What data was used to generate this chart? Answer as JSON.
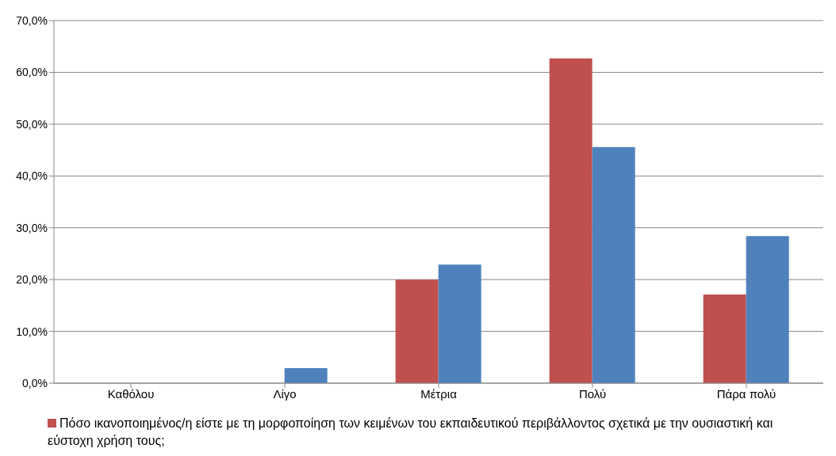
{
  "chart_data": {
    "type": "bar",
    "categories": [
      "Καθόλου",
      "Λίγο",
      "Μέτρια",
      "Πολύ",
      "Πάρα πολύ"
    ],
    "series": [
      {
        "name": "Πόσο ικανοποιημένος/η είστε με τη μορφοποίηση των κειμένων του εκπαιδευτικού περιβάλλοντος σχετικά με την ουσιαστική και εύστοχη χρήση τους;",
        "color": "#c0504d",
        "values": [
          0,
          0,
          20.0,
          62.7,
          17.1
        ]
      },
      {
        "color": "#4f81bd",
        "values": [
          0,
          2.9,
          22.9,
          45.6,
          28.4
        ]
      }
    ],
    "ylim": [
      0,
      70
    ],
    "yticks": [
      {
        "value": 0,
        "label": "0,0%"
      },
      {
        "value": 10,
        "label": "10,0%"
      },
      {
        "value": 20,
        "label": "20,0%"
      },
      {
        "value": 30,
        "label": "30,0%"
      },
      {
        "value": 40,
        "label": "40,0%"
      },
      {
        "value": 50,
        "label": "50,0%"
      },
      {
        "value": 60,
        "label": "60,0%"
      },
      {
        "value": 70,
        "label": "70,0%"
      }
    ],
    "grid": "y",
    "legend": "bottom"
  }
}
